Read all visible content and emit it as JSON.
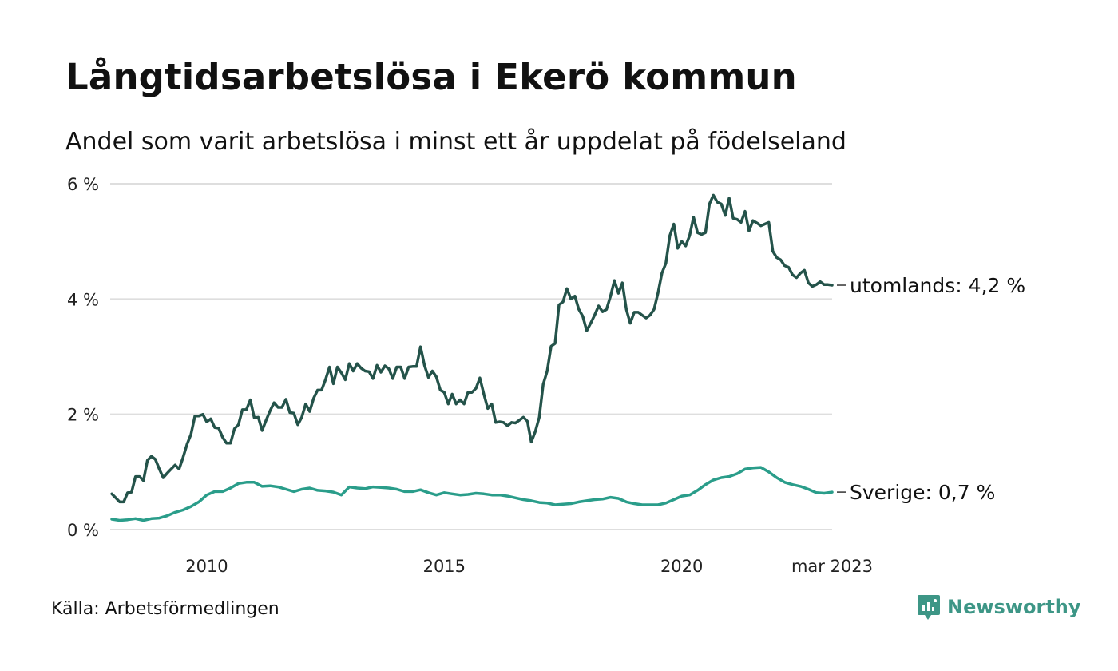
{
  "header": {
    "title": "Långtidsarbetslösa i Ekerö kommun",
    "subtitle": "Andel som varit arbetslösa i minst ett år uppdelat på födelseland"
  },
  "footer": {
    "source": "Källa: Arbetsförmedlingen",
    "brand_name": "Newsworthy",
    "brand_icon": "chart-logo-icon",
    "brand_color": "#3d9686"
  },
  "chart_data": {
    "type": "line",
    "x_start": "2008-01",
    "x_end": "2023-03",
    "x_ticks": [
      {
        "label": "2010",
        "x": "2010-01"
      },
      {
        "label": "2015",
        "x": "2015-01"
      },
      {
        "label": "2020",
        "x": "2020-01"
      },
      {
        "label": "mar 2023",
        "x": "2023-03"
      }
    ],
    "ylim": [
      0,
      6
    ],
    "y_ticks": [
      {
        "label": "0 %",
        "value": 0
      },
      {
        "label": "2 %",
        "value": 2
      },
      {
        "label": "4 %",
        "value": 4
      },
      {
        "label": "6 %",
        "value": 6
      }
    ],
    "grid": true,
    "series": [
      {
        "name": "utomlands",
        "end_label": "utomlands: 4,2 %",
        "color": "#24534a",
        "points": [
          [
            "2008-01",
            0.62
          ],
          [
            "2008-02",
            0.55
          ],
          [
            "2008-03",
            0.48
          ],
          [
            "2008-04",
            0.48
          ],
          [
            "2008-05",
            0.64
          ],
          [
            "2008-06",
            0.65
          ],
          [
            "2008-07",
            0.92
          ],
          [
            "2008-08",
            0.92
          ],
          [
            "2008-09",
            0.85
          ],
          [
            "2008-10",
            1.2
          ],
          [
            "2008-11",
            1.27
          ],
          [
            "2008-12",
            1.22
          ],
          [
            "2009-01",
            1.05
          ],
          [
            "2009-02",
            0.9
          ],
          [
            "2009-03",
            0.98
          ],
          [
            "2009-04",
            1.05
          ],
          [
            "2009-05",
            1.12
          ],
          [
            "2009-06",
            1.05
          ],
          [
            "2009-07",
            1.25
          ],
          [
            "2009-08",
            1.48
          ],
          [
            "2009-09",
            1.65
          ],
          [
            "2009-10",
            1.97
          ],
          [
            "2009-11",
            1.97
          ],
          [
            "2009-12",
            2.0
          ],
          [
            "2010-01",
            1.87
          ],
          [
            "2010-02",
            1.92
          ],
          [
            "2010-03",
            1.77
          ],
          [
            "2010-04",
            1.76
          ],
          [
            "2010-05",
            1.6
          ],
          [
            "2010-06",
            1.5
          ],
          [
            "2010-07",
            1.5
          ],
          [
            "2010-08",
            1.75
          ],
          [
            "2010-09",
            1.82
          ],
          [
            "2010-10",
            2.08
          ],
          [
            "2010-11",
            2.08
          ],
          [
            "2010-12",
            2.25
          ],
          [
            "2011-01",
            1.94
          ],
          [
            "2011-02",
            1.95
          ],
          [
            "2011-03",
            1.72
          ],
          [
            "2011-04",
            1.9
          ],
          [
            "2011-05",
            2.06
          ],
          [
            "2011-06",
            2.2
          ],
          [
            "2011-07",
            2.12
          ],
          [
            "2011-08",
            2.12
          ],
          [
            "2011-09",
            2.26
          ],
          [
            "2011-10",
            2.03
          ],
          [
            "2011-11",
            2.02
          ],
          [
            "2011-12",
            1.82
          ],
          [
            "2012-01",
            1.95
          ],
          [
            "2012-02",
            2.18
          ],
          [
            "2012-03",
            2.05
          ],
          [
            "2012-04",
            2.28
          ],
          [
            "2012-05",
            2.42
          ],
          [
            "2012-06",
            2.42
          ],
          [
            "2012-07",
            2.6
          ],
          [
            "2012-08",
            2.82
          ],
          [
            "2012-09",
            2.53
          ],
          [
            "2012-10",
            2.82
          ],
          [
            "2012-11",
            2.72
          ],
          [
            "2012-12",
            2.6
          ],
          [
            "2013-01",
            2.88
          ],
          [
            "2013-02",
            2.75
          ],
          [
            "2013-03",
            2.88
          ],
          [
            "2013-04",
            2.8
          ],
          [
            "2013-05",
            2.75
          ],
          [
            "2013-06",
            2.74
          ],
          [
            "2013-07",
            2.62
          ],
          [
            "2013-08",
            2.85
          ],
          [
            "2013-09",
            2.73
          ],
          [
            "2013-10",
            2.84
          ],
          [
            "2013-11",
            2.79
          ],
          [
            "2013-12",
            2.62
          ],
          [
            "2014-01",
            2.82
          ],
          [
            "2014-02",
            2.82
          ],
          [
            "2014-03",
            2.62
          ],
          [
            "2014-04",
            2.82
          ],
          [
            "2014-05",
            2.83
          ],
          [
            "2014-06",
            2.83
          ],
          [
            "2014-07",
            3.17
          ],
          [
            "2014-08",
            2.85
          ],
          [
            "2014-09",
            2.64
          ],
          [
            "2014-10",
            2.75
          ],
          [
            "2014-11",
            2.65
          ],
          [
            "2014-12",
            2.42
          ],
          [
            "2015-01",
            2.38
          ],
          [
            "2015-02",
            2.18
          ],
          [
            "2015-03",
            2.35
          ],
          [
            "2015-04",
            2.18
          ],
          [
            "2015-05",
            2.25
          ],
          [
            "2015-06",
            2.18
          ],
          [
            "2015-07",
            2.38
          ],
          [
            "2015-08",
            2.38
          ],
          [
            "2015-09",
            2.45
          ],
          [
            "2015-10",
            2.63
          ],
          [
            "2015-11",
            2.35
          ],
          [
            "2015-12",
            2.1
          ],
          [
            "2016-01",
            2.18
          ],
          [
            "2016-02",
            1.86
          ],
          [
            "2016-03",
            1.87
          ],
          [
            "2016-04",
            1.86
          ],
          [
            "2016-05",
            1.8
          ],
          [
            "2016-06",
            1.86
          ],
          [
            "2016-07",
            1.85
          ],
          [
            "2016-08",
            1.9
          ],
          [
            "2016-09",
            1.95
          ],
          [
            "2016-10",
            1.88
          ],
          [
            "2016-11",
            1.52
          ],
          [
            "2016-12",
            1.7
          ],
          [
            "2017-01",
            1.95
          ],
          [
            "2017-02",
            2.52
          ],
          [
            "2017-03",
            2.75
          ],
          [
            "2017-04",
            3.18
          ],
          [
            "2017-05",
            3.23
          ],
          [
            "2017-06",
            3.9
          ],
          [
            "2017-07",
            3.95
          ],
          [
            "2017-08",
            4.18
          ],
          [
            "2017-09",
            4.0
          ],
          [
            "2017-10",
            4.05
          ],
          [
            "2017-11",
            3.82
          ],
          [
            "2017-12",
            3.7
          ],
          [
            "2018-01",
            3.45
          ],
          [
            "2018-02",
            3.58
          ],
          [
            "2018-03",
            3.72
          ],
          [
            "2018-04",
            3.88
          ],
          [
            "2018-05",
            3.78
          ],
          [
            "2018-06",
            3.82
          ],
          [
            "2018-07",
            4.05
          ],
          [
            "2018-08",
            4.32
          ],
          [
            "2018-09",
            4.1
          ],
          [
            "2018-10",
            4.28
          ],
          [
            "2018-11",
            3.82
          ],
          [
            "2018-12",
            3.58
          ],
          [
            "2019-01",
            3.77
          ],
          [
            "2019-02",
            3.77
          ],
          [
            "2019-03",
            3.72
          ],
          [
            "2019-04",
            3.67
          ],
          [
            "2019-05",
            3.72
          ],
          [
            "2019-06",
            3.82
          ],
          [
            "2019-07",
            4.1
          ],
          [
            "2019-08",
            4.45
          ],
          [
            "2019-09",
            4.62
          ],
          [
            "2019-10",
            5.1
          ],
          [
            "2019-11",
            5.3
          ],
          [
            "2019-12",
            4.88
          ],
          [
            "2020-01",
            5.0
          ],
          [
            "2020-02",
            4.92
          ],
          [
            "2020-03",
            5.1
          ],
          [
            "2020-04",
            5.42
          ],
          [
            "2020-05",
            5.15
          ],
          [
            "2020-06",
            5.12
          ],
          [
            "2020-07",
            5.15
          ],
          [
            "2020-08",
            5.65
          ],
          [
            "2020-09",
            5.8
          ],
          [
            "2020-10",
            5.68
          ],
          [
            "2020-11",
            5.65
          ],
          [
            "2020-12",
            5.45
          ],
          [
            "2021-01",
            5.75
          ],
          [
            "2021-02",
            5.4
          ],
          [
            "2021-03",
            5.38
          ],
          [
            "2021-04",
            5.33
          ],
          [
            "2021-05",
            5.52
          ],
          [
            "2021-06",
            5.18
          ],
          [
            "2021-07",
            5.36
          ],
          [
            "2021-08",
            5.32
          ],
          [
            "2021-09",
            5.27
          ],
          [
            "2021-10",
            5.3
          ],
          [
            "2021-11",
            5.33
          ],
          [
            "2021-12",
            4.83
          ],
          [
            "2022-01",
            4.72
          ],
          [
            "2022-02",
            4.68
          ],
          [
            "2022-03",
            4.58
          ],
          [
            "2022-04",
            4.55
          ],
          [
            "2022-05",
            4.42
          ],
          [
            "2022-06",
            4.37
          ],
          [
            "2022-07",
            4.45
          ],
          [
            "2022-08",
            4.5
          ],
          [
            "2022-09",
            4.28
          ],
          [
            "2022-10",
            4.22
          ],
          [
            "2022-11",
            4.25
          ],
          [
            "2022-12",
            4.3
          ],
          [
            "2023-01",
            4.25
          ],
          [
            "2023-02",
            4.25
          ],
          [
            "2023-03",
            4.24
          ]
        ]
      },
      {
        "name": "Sverige",
        "end_label": "Sverige: 0,7 %",
        "color": "#2a9d8a",
        "points": [
          [
            "2008-01",
            0.18
          ],
          [
            "2008-03",
            0.16
          ],
          [
            "2008-05",
            0.17
          ],
          [
            "2008-07",
            0.19
          ],
          [
            "2008-09",
            0.16
          ],
          [
            "2008-11",
            0.19
          ],
          [
            "2009-01",
            0.2
          ],
          [
            "2009-03",
            0.24
          ],
          [
            "2009-05",
            0.3
          ],
          [
            "2009-07",
            0.34
          ],
          [
            "2009-09",
            0.4
          ],
          [
            "2009-11",
            0.48
          ],
          [
            "2010-01",
            0.6
          ],
          [
            "2010-03",
            0.66
          ],
          [
            "2010-05",
            0.66
          ],
          [
            "2010-07",
            0.72
          ],
          [
            "2010-09",
            0.8
          ],
          [
            "2010-11",
            0.82
          ],
          [
            "2011-01",
            0.82
          ],
          [
            "2011-03",
            0.75
          ],
          [
            "2011-05",
            0.76
          ],
          [
            "2011-07",
            0.74
          ],
          [
            "2011-09",
            0.7
          ],
          [
            "2011-11",
            0.66
          ],
          [
            "2012-01",
            0.7
          ],
          [
            "2012-03",
            0.72
          ],
          [
            "2012-05",
            0.68
          ],
          [
            "2012-07",
            0.67
          ],
          [
            "2012-09",
            0.65
          ],
          [
            "2012-11",
            0.6
          ],
          [
            "2013-01",
            0.74
          ],
          [
            "2013-03",
            0.72
          ],
          [
            "2013-05",
            0.71
          ],
          [
            "2013-07",
            0.74
          ],
          [
            "2013-09",
            0.73
          ],
          [
            "2013-11",
            0.72
          ],
          [
            "2014-01",
            0.7
          ],
          [
            "2014-03",
            0.66
          ],
          [
            "2014-05",
            0.66
          ],
          [
            "2014-07",
            0.69
          ],
          [
            "2014-09",
            0.64
          ],
          [
            "2014-11",
            0.6
          ],
          [
            "2015-01",
            0.64
          ],
          [
            "2015-03",
            0.62
          ],
          [
            "2015-05",
            0.6
          ],
          [
            "2015-07",
            0.61
          ],
          [
            "2015-09",
            0.63
          ],
          [
            "2015-11",
            0.62
          ],
          [
            "2016-01",
            0.6
          ],
          [
            "2016-03",
            0.6
          ],
          [
            "2016-05",
            0.58
          ],
          [
            "2016-07",
            0.55
          ],
          [
            "2016-09",
            0.52
          ],
          [
            "2016-11",
            0.5
          ],
          [
            "2017-01",
            0.47
          ],
          [
            "2017-03",
            0.46
          ],
          [
            "2017-05",
            0.43
          ],
          [
            "2017-07",
            0.44
          ],
          [
            "2017-09",
            0.45
          ],
          [
            "2017-11",
            0.48
          ],
          [
            "2018-01",
            0.5
          ],
          [
            "2018-03",
            0.52
          ],
          [
            "2018-05",
            0.53
          ],
          [
            "2018-07",
            0.56
          ],
          [
            "2018-09",
            0.54
          ],
          [
            "2018-11",
            0.48
          ],
          [
            "2019-01",
            0.45
          ],
          [
            "2019-03",
            0.43
          ],
          [
            "2019-05",
            0.43
          ],
          [
            "2019-07",
            0.43
          ],
          [
            "2019-09",
            0.46
          ],
          [
            "2019-11",
            0.52
          ],
          [
            "2020-01",
            0.58
          ],
          [
            "2020-03",
            0.6
          ],
          [
            "2020-05",
            0.68
          ],
          [
            "2020-07",
            0.78
          ],
          [
            "2020-09",
            0.86
          ],
          [
            "2020-11",
            0.9
          ],
          [
            "2021-01",
            0.92
          ],
          [
            "2021-03",
            0.97
          ],
          [
            "2021-05",
            1.05
          ],
          [
            "2021-07",
            1.07
          ],
          [
            "2021-09",
            1.08
          ],
          [
            "2021-11",
            1.0
          ],
          [
            "2022-01",
            0.9
          ],
          [
            "2022-03",
            0.82
          ],
          [
            "2022-05",
            0.78
          ],
          [
            "2022-07",
            0.75
          ],
          [
            "2022-09",
            0.7
          ],
          [
            "2022-11",
            0.64
          ],
          [
            "2023-01",
            0.63
          ],
          [
            "2023-03",
            0.65
          ]
        ]
      }
    ]
  }
}
